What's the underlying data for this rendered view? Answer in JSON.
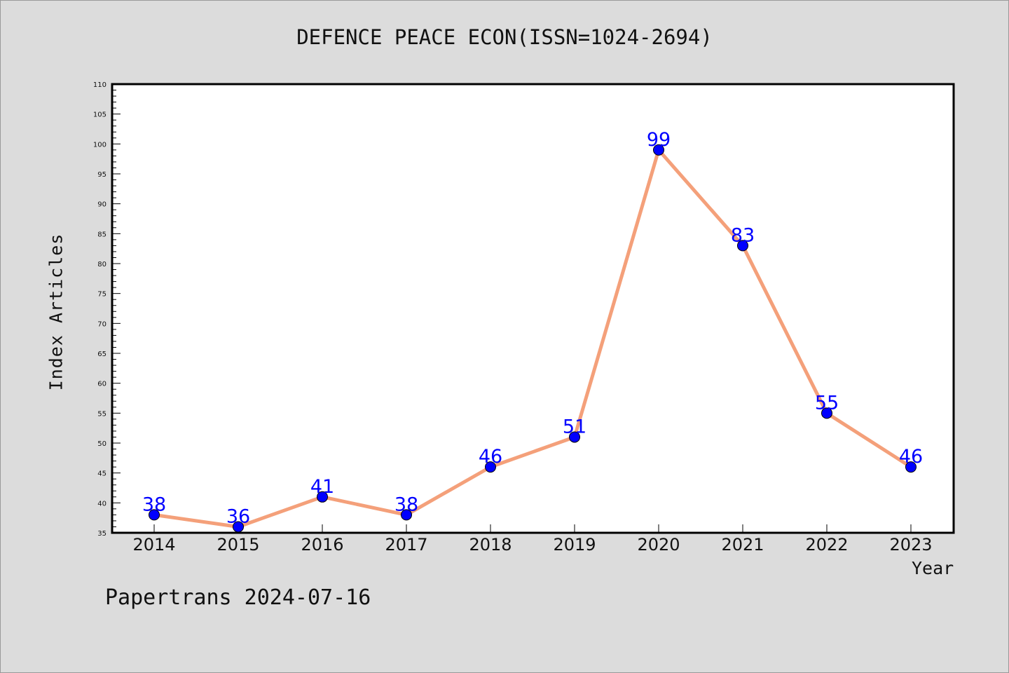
{
  "chart_data": {
    "type": "line",
    "title": "DEFENCE PEACE ECON(ISSN=1024-2694)",
    "xlabel": "Year",
    "ylabel": "Index Articles",
    "categories": [
      "2014",
      "2015",
      "2016",
      "2017",
      "2018",
      "2019",
      "2020",
      "2021",
      "2022",
      "2023"
    ],
    "series": [
      {
        "values": [
          38,
          36,
          41,
          38,
          46,
          51,
          99,
          83,
          55,
          46
        ]
      }
    ],
    "ylim": [
      35,
      110
    ],
    "yticks": [
      35,
      40,
      45,
      50,
      55,
      60,
      65,
      70,
      75,
      80,
      85,
      90,
      95,
      100,
      105,
      110
    ],
    "grid": false,
    "colors": {
      "line": "#f4a07a",
      "marker": "#0000ff",
      "label": "#0000ff",
      "background": "#dcdcdc",
      "plot_background": "#ffffff"
    }
  },
  "footer": "Papertrans 2024-07-16"
}
